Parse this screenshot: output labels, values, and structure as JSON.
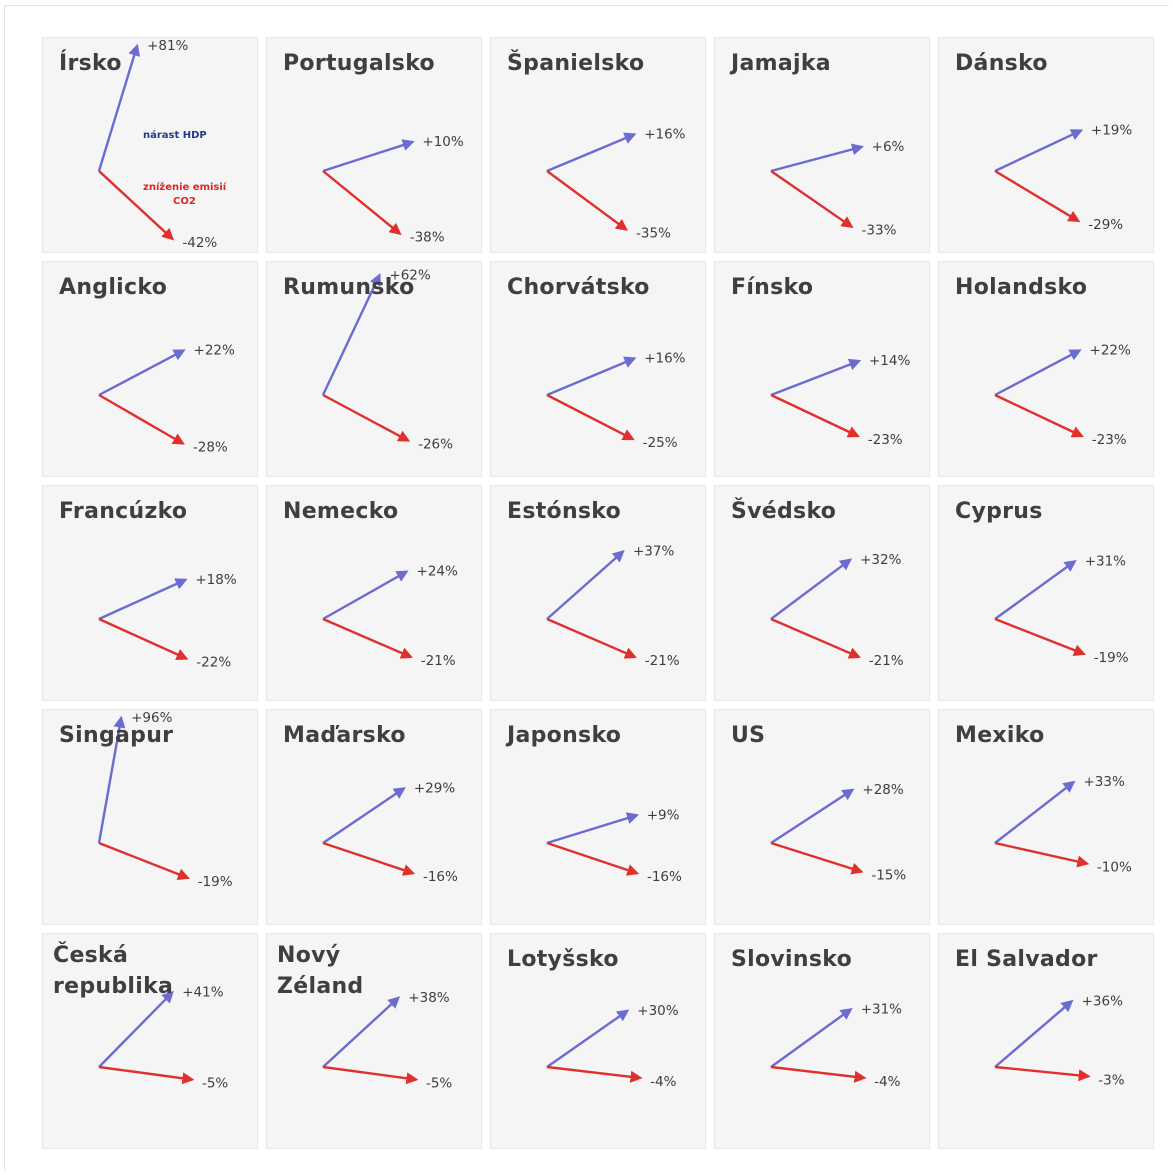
{
  "colors": {
    "gdp": "#6b6bd0",
    "co2": "#e0302e",
    "legend_gdp": "#1f3c8c",
    "legend_co2": "#d42a2a"
  },
  "legend": {
    "gdp_label": "nárast HDP",
    "co2_label_line1": "zníženie emisií",
    "co2_label_line2": "CO2"
  },
  "chart_data": {
    "type": "small-multiples-vectors",
    "series": [
      {
        "name": "nárast HDP"
      },
      {
        "name": "zníženie emisií CO2"
      }
    ],
    "countries": [
      {
        "name": "Írsko",
        "gdp": 81,
        "gdp_label": "+81%",
        "co2": -42,
        "co2_label": "-42%"
      },
      {
        "name": "Portugalsko",
        "gdp": 10,
        "gdp_label": "+10%",
        "co2": -38,
        "co2_label": "-38%"
      },
      {
        "name": "Španielsko",
        "gdp": 16,
        "gdp_label": "+16%",
        "co2": -35,
        "co2_label": "-35%"
      },
      {
        "name": "Jamajka",
        "gdp": 6,
        "gdp_label": "+6%",
        "co2": -33,
        "co2_label": "-33%"
      },
      {
        "name": "Dánsko",
        "gdp": 19,
        "gdp_label": "+19%",
        "co2": -29,
        "co2_label": "-29%"
      },
      {
        "name": "Anglicko",
        "gdp": 22,
        "gdp_label": "+22%",
        "co2": -28,
        "co2_label": "-28%"
      },
      {
        "name": "Rumunsko",
        "gdp": 62,
        "gdp_label": "+62%",
        "co2": -26,
        "co2_label": "-26%"
      },
      {
        "name": "Chorvátsko",
        "gdp": 16,
        "gdp_label": "+16%",
        "co2": -25,
        "co2_label": "-25%"
      },
      {
        "name": "Fínsko",
        "gdp": 14,
        "gdp_label": "+14%",
        "co2": -23,
        "co2_label": "-23%"
      },
      {
        "name": "Holandsko",
        "gdp": 22,
        "gdp_label": "+22%",
        "co2": -23,
        "co2_label": "-23%"
      },
      {
        "name": "Francúzko",
        "gdp": 18,
        "gdp_label": "+18%",
        "co2": -22,
        "co2_label": "-22%"
      },
      {
        "name": "Nemecko",
        "gdp": 24,
        "gdp_label": "+24%",
        "co2": -21,
        "co2_label": "-21%"
      },
      {
        "name": "Estónsko",
        "gdp": 37,
        "gdp_label": "+37%",
        "co2": -21,
        "co2_label": "-21%"
      },
      {
        "name": "Švédsko",
        "gdp": 32,
        "gdp_label": "+32%",
        "co2": -21,
        "co2_label": "-21%"
      },
      {
        "name": "Cyprus",
        "gdp": 31,
        "gdp_label": "+31%",
        "co2": -19,
        "co2_label": "-19%"
      },
      {
        "name": "Singapur",
        "gdp": 96,
        "gdp_label": "+96%",
        "co2": -19,
        "co2_label": "-19%"
      },
      {
        "name": "Maďarsko",
        "gdp": 29,
        "gdp_label": "+29%",
        "co2": -16,
        "co2_label": "-16%"
      },
      {
        "name": "Japonsko",
        "gdp": 9,
        "gdp_label": "+9%",
        "co2": -16,
        "co2_label": "-16%"
      },
      {
        "name": "US",
        "gdp": 28,
        "gdp_label": "+28%",
        "co2": -15,
        "co2_label": "-15%"
      },
      {
        "name": "Mexiko",
        "gdp": 33,
        "gdp_label": "+33%",
        "co2": -10,
        "co2_label": "-10%"
      },
      {
        "name": "Česká\nrepublika",
        "gdp": 41,
        "gdp_label": "+41%",
        "co2": -5,
        "co2_label": "-5%"
      },
      {
        "name": "Nový\nZéland",
        "gdp": 38,
        "gdp_label": "+38%",
        "co2": -5,
        "co2_label": "-5%"
      },
      {
        "name": "Lotyšsko",
        "gdp": 30,
        "gdp_label": "+30%",
        "co2": -4,
        "co2_label": "-4%"
      },
      {
        "name": "Slovinsko",
        "gdp": 31,
        "gdp_label": "+31%",
        "co2": -4,
        "co2_label": "-4%"
      },
      {
        "name": "El Salvador",
        "gdp": 36,
        "gdp_label": "+36%",
        "co2": -3,
        "co2_label": "-3%"
      }
    ]
  }
}
